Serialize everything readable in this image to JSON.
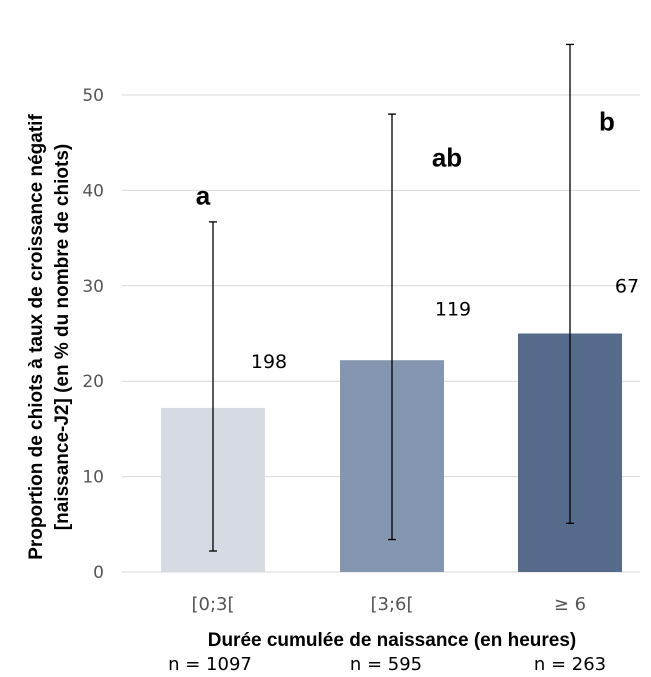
{
  "chart_data": {
    "type": "bar",
    "ylabel_line1": "Proportion de chiots à taux de croissance négatif",
    "ylabel_line2": "[naissance-J2] (en % du nombre de chiots)",
    "xlabel": "Durée cumulée de naissance (en heures)",
    "categories": [
      "[0;3[",
      "[3;6[",
      "≥ 6"
    ],
    "values": [
      17.2,
      22.2,
      25.0
    ],
    "error_low": [
      2.2,
      3.4,
      5.1
    ],
    "error_high": [
      36.7,
      48.0,
      55.3
    ],
    "counts": [
      "198",
      "119",
      "67"
    ],
    "letters": [
      "a",
      "ab",
      "b"
    ],
    "n_labels": [
      "n = 1097",
      "n = 595",
      "n = 263"
    ],
    "ylim": [
      0,
      55
    ],
    "yticks": [
      0,
      10,
      20,
      30,
      40,
      50
    ],
    "grid": true,
    "colors": [
      "#d6dbe3",
      "#8596b0",
      "#566a8b"
    ]
  }
}
